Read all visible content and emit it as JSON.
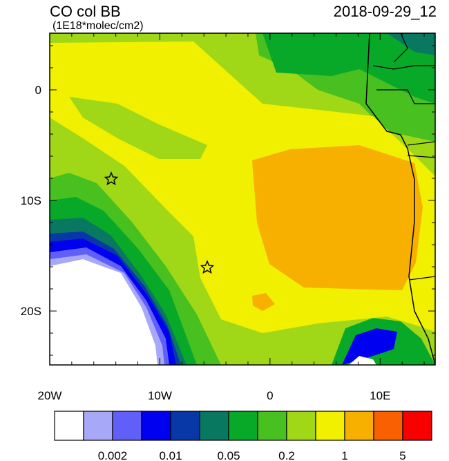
{
  "header": {
    "title": "CO col BB",
    "units": "(1E18*molec/cm2)",
    "date": "2018-09-29_12"
  },
  "axes": {
    "x_labels": [
      "20W",
      "10W",
      "0",
      "10E"
    ],
    "y_labels": [
      "0",
      "10S",
      "20S"
    ]
  },
  "colorbar": {
    "labels": [
      "0.002",
      "0.01",
      "0.05",
      "0.2",
      "1",
      "5"
    ]
  }
}
